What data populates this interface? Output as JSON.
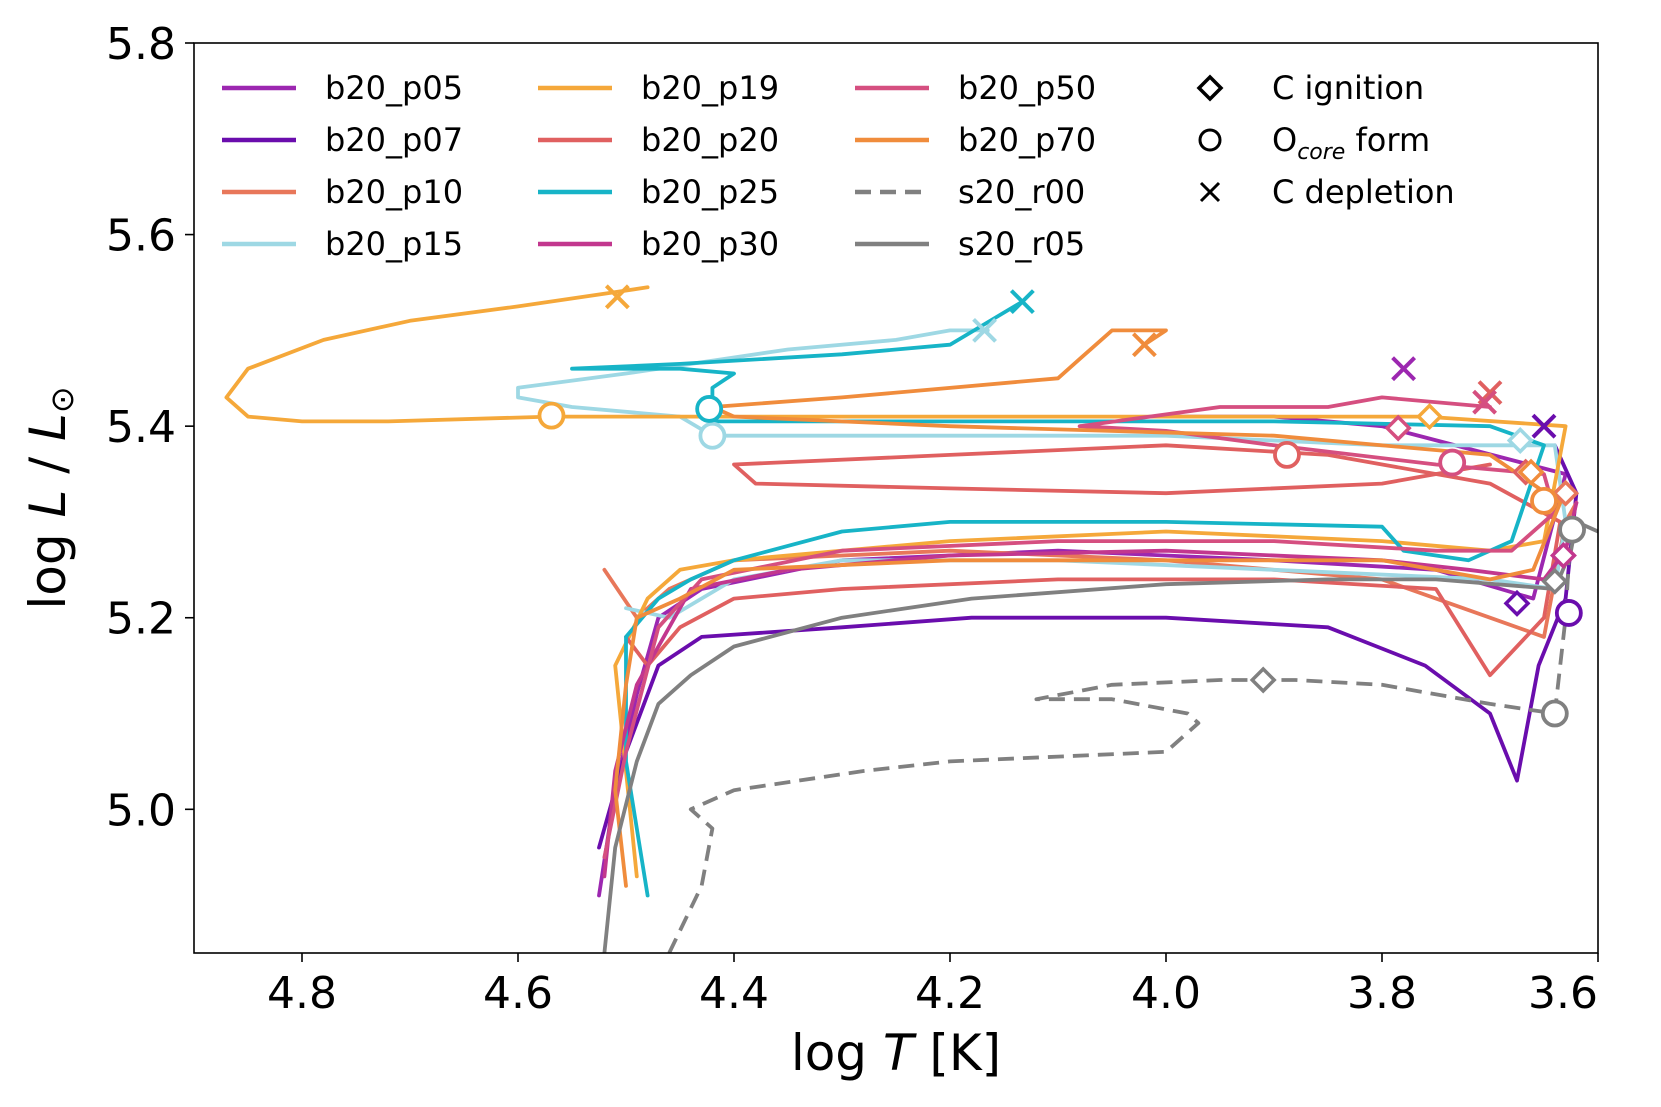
{
  "chart_data": {
    "type": "line",
    "xlabel": "log T [K]",
    "ylabel": "log L / L_sun",
    "xlim": [
      4.9,
      3.6
    ],
    "ylim": [
      4.85,
      5.8
    ],
    "x_ticks": [
      "4.8",
      "4.6",
      "4.4",
      "4.2",
      "4.0",
      "3.8",
      "3.6"
    ],
    "y_ticks": [
      "5.0",
      "5.2",
      "5.4",
      "5.6",
      "5.8"
    ],
    "legend_markers": [
      {
        "symbol": "diamond",
        "label": "C ignition"
      },
      {
        "symbol": "circle",
        "label": "O",
        "sub": "core",
        "suffix": " form"
      },
      {
        "symbol": "x",
        "label": "C depletion"
      }
    ],
    "series": [
      {
        "name": "b20_p05",
        "color": "#9c27b0",
        "dash": false,
        "points": [
          [
            4.525,
            4.91
          ],
          [
            4.51,
            5.02
          ],
          [
            4.49,
            5.12
          ],
          [
            4.47,
            5.2
          ],
          [
            4.43,
            5.23
          ],
          [
            4.3,
            5.26
          ],
          [
            4.1,
            5.27
          ],
          [
            3.9,
            5.26
          ],
          [
            3.75,
            5.25
          ],
          [
            3.66,
            5.22
          ],
          [
            3.63,
            5.35
          ],
          [
            3.8,
            5.4
          ],
          [
            3.9,
            5.41
          ],
          [
            4.0,
            5.41
          ]
        ],
        "ignition": null,
        "core": null,
        "depletion": [
          3.78,
          5.46
        ]
      },
      {
        "name": "b20_p07",
        "color": "#6a0dad",
        "dash": false,
        "points": [
          [
            4.525,
            4.96
          ],
          [
            4.5,
            5.06
          ],
          [
            4.47,
            5.15
          ],
          [
            4.43,
            5.18
          ],
          [
            4.3,
            5.19
          ],
          [
            4.18,
            5.2
          ],
          [
            4.0,
            5.2
          ],
          [
            3.85,
            5.19
          ],
          [
            3.76,
            5.15
          ],
          [
            3.7,
            5.1
          ],
          [
            3.675,
            5.03
          ],
          [
            3.655,
            5.15
          ],
          [
            3.63,
            5.22
          ],
          [
            3.62,
            5.33
          ],
          [
            3.64,
            5.38
          ]
        ],
        "ignition": [
          3.675,
          5.215
        ],
        "core": [
          3.627,
          5.205
        ],
        "depletion": [
          3.65,
          5.4
        ]
      },
      {
        "name": "b20_p10",
        "color": "#e8775a",
        "dash": false,
        "points": [
          [
            4.52,
            5.25
          ],
          [
            4.49,
            5.2
          ],
          [
            4.46,
            5.23
          ],
          [
            4.4,
            5.26
          ],
          [
            4.2,
            5.27
          ],
          [
            4.0,
            5.26
          ],
          [
            3.8,
            5.24
          ],
          [
            3.7,
            5.2
          ],
          [
            3.65,
            5.18
          ],
          [
            3.63,
            5.3
          ],
          [
            3.62,
            5.32
          ]
        ],
        "ignition": [
          3.63,
          5.33
        ],
        "core": null,
        "depletion": null
      },
      {
        "name": "b20_p15",
        "color": "#9ed8e4",
        "dash": false,
        "points": [
          [
            4.5,
            5.21
          ],
          [
            4.46,
            5.2
          ],
          [
            4.4,
            5.24
          ],
          [
            4.3,
            5.26
          ],
          [
            4.1,
            5.26
          ],
          [
            3.9,
            5.25
          ],
          [
            3.7,
            5.24
          ],
          [
            3.64,
            5.23
          ],
          [
            3.63,
            5.3
          ],
          [
            3.64,
            5.38
          ],
          [
            3.8,
            5.38
          ],
          [
            4.0,
            5.39
          ],
          [
            4.42,
            5.39
          ],
          [
            4.45,
            5.41
          ],
          [
            4.55,
            5.42
          ],
          [
            4.6,
            5.43
          ],
          [
            4.6,
            5.44
          ],
          [
            4.5,
            5.455
          ],
          [
            4.35,
            5.48
          ],
          [
            4.25,
            5.49
          ],
          [
            4.2,
            5.5
          ],
          [
            4.165,
            5.5
          ]
        ],
        "ignition": [
          3.672,
          5.385
        ],
        "core": [
          4.42,
          5.39
        ],
        "depletion": [
          4.168,
          5.5
        ]
      },
      {
        "name": "b20_p19",
        "color": "#f5a83a",
        "dash": false,
        "points": [
          [
            4.49,
            4.93
          ],
          [
            4.5,
            5.04
          ],
          [
            4.51,
            5.15
          ],
          [
            4.48,
            5.22
          ],
          [
            4.45,
            5.25
          ],
          [
            4.4,
            5.26
          ],
          [
            4.2,
            5.28
          ],
          [
            4.0,
            5.29
          ],
          [
            3.8,
            5.28
          ],
          [
            3.7,
            5.27
          ],
          [
            3.65,
            5.28
          ],
          [
            3.63,
            5.4
          ],
          [
            3.76,
            5.41
          ],
          [
            4.0,
            5.41
          ],
          [
            4.42,
            5.41
          ],
          [
            4.57,
            5.41
          ],
          [
            4.72,
            5.405
          ],
          [
            4.8,
            5.405
          ],
          [
            4.85,
            5.41
          ],
          [
            4.87,
            5.43
          ],
          [
            4.85,
            5.46
          ],
          [
            4.78,
            5.49
          ],
          [
            4.7,
            5.51
          ],
          [
            4.6,
            5.525
          ],
          [
            4.51,
            5.54
          ],
          [
            4.48,
            5.545
          ]
        ],
        "ignition": [
          3.756,
          5.41
        ],
        "core": [
          4.569,
          5.411
        ],
        "depletion": [
          4.508,
          5.535
        ]
      },
      {
        "name": "b20_p20",
        "color": "#e06060",
        "dash": false,
        "points": [
          [
            4.5,
            5.18
          ],
          [
            4.48,
            5.15
          ],
          [
            4.45,
            5.19
          ],
          [
            4.4,
            5.22
          ],
          [
            4.3,
            5.23
          ],
          [
            4.1,
            5.24
          ],
          [
            3.9,
            5.24
          ],
          [
            3.75,
            5.23
          ],
          [
            3.7,
            5.14
          ],
          [
            3.65,
            5.2
          ],
          [
            3.635,
            5.3
          ],
          [
            3.7,
            5.34
          ],
          [
            3.85,
            5.37
          ],
          [
            4.0,
            5.38
          ],
          [
            4.2,
            5.37
          ],
          [
            4.4,
            5.36
          ],
          [
            4.38,
            5.34
          ],
          [
            4.2,
            5.335
          ],
          [
            4.0,
            5.33
          ],
          [
            3.8,
            5.34
          ],
          [
            3.7,
            5.36
          ]
        ],
        "ignition": [
          3.667,
          5.352
        ],
        "core": [
          3.888,
          5.37
        ],
        "depletion": [
          3.7,
          5.435
        ]
      },
      {
        "name": "b20_p25",
        "color": "#17b4c7",
        "dash": false,
        "points": [
          [
            4.48,
            4.91
          ],
          [
            4.5,
            5.05
          ],
          [
            4.5,
            5.18
          ],
          [
            4.47,
            5.22
          ],
          [
            4.44,
            5.24
          ],
          [
            4.4,
            5.26
          ],
          [
            4.3,
            5.29
          ],
          [
            4.2,
            5.3
          ],
          [
            4.0,
            5.3
          ],
          [
            3.8,
            5.295
          ],
          [
            3.78,
            5.27
          ],
          [
            3.72,
            5.26
          ],
          [
            3.68,
            5.28
          ],
          [
            3.65,
            5.38
          ],
          [
            3.7,
            5.4
          ],
          [
            3.9,
            5.405
          ],
          [
            4.42,
            5.405
          ],
          [
            4.42,
            5.44
          ],
          [
            4.4,
            5.455
          ],
          [
            4.45,
            5.46
          ],
          [
            4.55,
            5.46
          ],
          [
            4.45,
            5.465
          ],
          [
            4.3,
            5.475
          ],
          [
            4.2,
            5.485
          ],
          [
            4.133,
            5.53
          ]
        ],
        "ignition": null,
        "core": [
          4.423,
          5.418
        ],
        "depletion": [
          4.133,
          5.53
        ]
      },
      {
        "name": "b20_p30",
        "color": "#c2378e",
        "dash": false,
        "points": [
          [
            4.52,
            4.93
          ],
          [
            4.51,
            5.04
          ],
          [
            4.49,
            5.13
          ],
          [
            4.47,
            5.17
          ],
          [
            4.44,
            5.23
          ],
          [
            4.35,
            5.25
          ],
          [
            4.2,
            5.265
          ],
          [
            4.0,
            5.27
          ],
          [
            3.8,
            5.26
          ],
          [
            3.72,
            5.25
          ],
          [
            3.65,
            5.24
          ],
          [
            3.63,
            5.27
          ],
          [
            3.62,
            5.32
          ]
        ],
        "ignition": [
          3.632,
          5.265
        ],
        "core": null,
        "depletion": null
      },
      {
        "name": "b20_p50",
        "color": "#d54f80",
        "dash": false,
        "points": [
          [
            4.52,
            4.95
          ],
          [
            4.5,
            5.06
          ],
          [
            4.47,
            5.19
          ],
          [
            4.43,
            5.24
          ],
          [
            4.3,
            5.27
          ],
          [
            4.1,
            5.28
          ],
          [
            3.9,
            5.28
          ],
          [
            3.75,
            5.27
          ],
          [
            3.68,
            5.27
          ],
          [
            3.64,
            5.31
          ],
          [
            3.65,
            5.35
          ],
          [
            3.75,
            5.36
          ],
          [
            3.9,
            5.38
          ],
          [
            4.0,
            5.395
          ],
          [
            4.08,
            5.4
          ],
          [
            3.95,
            5.42
          ],
          [
            3.85,
            5.42
          ],
          [
            3.8,
            5.43
          ],
          [
            3.7,
            5.42
          ]
        ],
        "ignition": [
          3.785,
          5.398
        ],
        "core": [
          3.735,
          5.362
        ],
        "depletion": [
          3.705,
          5.425
        ]
      },
      {
        "name": "b20_p70",
        "color": "#f08c3c",
        "dash": false,
        "points": [
          [
            4.5,
            4.92
          ],
          [
            4.51,
            5.02
          ],
          [
            4.5,
            5.13
          ],
          [
            4.49,
            5.2
          ],
          [
            4.45,
            5.22
          ],
          [
            4.4,
            5.25
          ],
          [
            4.2,
            5.26
          ],
          [
            4.0,
            5.26
          ],
          [
            3.8,
            5.26
          ],
          [
            3.7,
            5.24
          ],
          [
            3.66,
            5.25
          ],
          [
            3.635,
            5.32
          ],
          [
            3.7,
            5.37
          ],
          [
            3.9,
            5.39
          ],
          [
            4.2,
            5.4
          ],
          [
            4.4,
            5.41
          ],
          [
            4.42,
            5.42
          ],
          [
            4.3,
            5.43
          ],
          [
            4.1,
            5.45
          ],
          [
            4.08,
            5.47
          ],
          [
            4.05,
            5.5
          ],
          [
            4.0,
            5.5
          ],
          [
            4.02,
            5.485
          ]
        ],
        "ignition": [
          3.662,
          5.352
        ],
        "core": [
          3.65,
          5.322
        ],
        "depletion": [
          4.02,
          5.485
        ]
      },
      {
        "name": "s20_r00",
        "color": "#808080",
        "dash": true,
        "points": [
          [
            4.46,
            4.85
          ],
          [
            4.43,
            4.92
          ],
          [
            4.42,
            4.98
          ],
          [
            4.44,
            5.0
          ],
          [
            4.4,
            5.02
          ],
          [
            4.28,
            5.04
          ],
          [
            4.2,
            5.05
          ],
          [
            4.1,
            5.055
          ],
          [
            4.0,
            5.06
          ],
          [
            3.97,
            5.09
          ],
          [
            3.98,
            5.1
          ],
          [
            4.05,
            5.115
          ],
          [
            4.12,
            5.115
          ],
          [
            4.05,
            5.13
          ],
          [
            3.95,
            5.135
          ],
          [
            3.88,
            5.135
          ],
          [
            3.8,
            5.13
          ],
          [
            3.7,
            5.11
          ],
          [
            3.64,
            5.1
          ],
          [
            3.63,
            5.2
          ],
          [
            3.625,
            5.3
          ]
        ],
        "ignition": [
          3.91,
          5.135
        ],
        "core": [
          3.64,
          5.1
        ],
        "depletion": null
      },
      {
        "name": "s20_r05",
        "color": "#808080",
        "dash": false,
        "points": [
          [
            4.52,
            4.85
          ],
          [
            4.51,
            4.96
          ],
          [
            4.49,
            5.05
          ],
          [
            4.47,
            5.11
          ],
          [
            4.44,
            5.14
          ],
          [
            4.4,
            5.17
          ],
          [
            4.3,
            5.2
          ],
          [
            4.18,
            5.22
          ],
          [
            4.0,
            5.235
          ],
          [
            3.85,
            5.24
          ],
          [
            3.75,
            5.24
          ],
          [
            3.64,
            5.23
          ],
          [
            3.625,
            5.27
          ],
          [
            3.62,
            5.3
          ],
          [
            3.6,
            5.29
          ]
        ],
        "ignition": [
          3.64,
          5.238
        ],
        "core": [
          3.624,
          5.292
        ],
        "depletion": null
      }
    ]
  }
}
